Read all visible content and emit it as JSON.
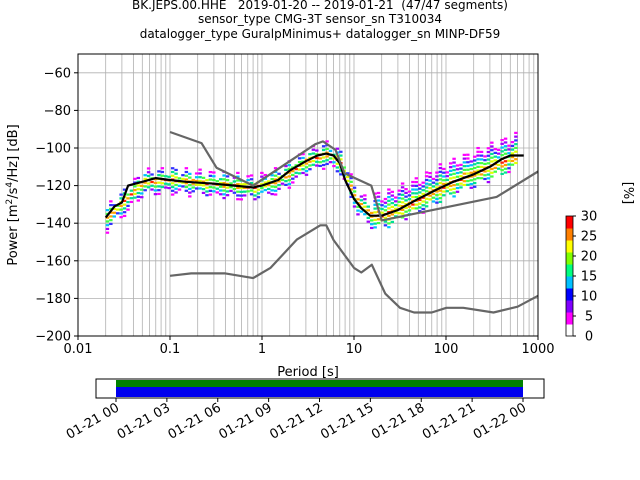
{
  "titles": {
    "line1": "BK.JEPS.00.HHE   2019-01-20 -- 2019-01-21  (47/47 segments)",
    "line2": "sensor_type CMG-3T sensor_sn T310034",
    "line3": "datalogger_type GuralpMinimus+ datalogger_sn MINP-DF59"
  },
  "chart_data": [
    {
      "type": "heatmap",
      "title": "",
      "xlabel": "Period [s]",
      "ylabel_parts": {
        "pre": "Power [m",
        "sup1": "2",
        "mid": "/s",
        "sup2": "4",
        "post": "/Hz] [dB]"
      },
      "xscale": "log",
      "xlim": [
        0.01,
        1000
      ],
      "ylim": [
        -200,
        -50
      ],
      "xtick_values": [
        0.01,
        0.1,
        1,
        10,
        100,
        1000
      ],
      "xtick_labels": [
        "0.01",
        "0.1",
        "1",
        "10",
        "100",
        "1000"
      ],
      "ytick_values": [
        -200,
        -180,
        -160,
        -140,
        -120,
        -100,
        -80,
        -60
      ],
      "ytick_labels": [
        "−200",
        "−180",
        "−160",
        "−140",
        "−120",
        "−100",
        "−80",
        "−60"
      ],
      "grid": true,
      "colorbar": {
        "label": "[%]",
        "min": 0,
        "max": 30,
        "ticks": [
          "0",
          "5",
          "10",
          "15",
          "20",
          "25",
          "30"
        ]
      },
      "series": [
        {
          "name": "",
          "role": "mode",
          "color": "#000000",
          "x": [
            0.02,
            0.025,
            0.03,
            0.035,
            0.05,
            0.07,
            0.1,
            0.15,
            0.3,
            0.5,
            0.8,
            1.0,
            1.5,
            2.0,
            3.0,
            4.0,
            5.0,
            6.0,
            7.0,
            8.0,
            10.0,
            12.0,
            15.0,
            20.0,
            30.0,
            50.0,
            80.0,
            120.0,
            200.0,
            300.0,
            400.0,
            500.0,
            700.0
          ],
          "y": [
            -137,
            -131,
            -129,
            -120,
            -118,
            -116,
            -117,
            -118,
            -119,
            -120,
            -121,
            -120,
            -117,
            -112,
            -107,
            -104,
            -103,
            -104,
            -108,
            -117,
            -127,
            -132,
            -136,
            -136,
            -133,
            -127,
            -122,
            -118,
            -114,
            -110,
            -106,
            -104,
            -104
          ]
        },
        {
          "name": "",
          "role": "NHNM",
          "color": "#666666",
          "x": [
            0.1,
            0.22,
            0.32,
            0.8,
            3.8,
            4.6,
            6.3,
            7.9,
            15.4,
            20.0,
            354.8,
            1000.0
          ],
          "y": [
            -91.5,
            -97.4,
            -110.5,
            -120.0,
            -98.0,
            -96.5,
            -101.0,
            -113.5,
            -120.0,
            -138.5,
            -126.0,
            -112.5
          ]
        },
        {
          "name": "",
          "role": "NLNM",
          "color": "#666666",
          "x": [
            0.1,
            0.17,
            0.4,
            0.8,
            1.24,
            2.4,
            4.3,
            5.0,
            6.0,
            10.0,
            12.0,
            15.6,
            21.9,
            31.6,
            45.0,
            70.0,
            101.0,
            154.0,
            328.0,
            600.0,
            1000.0
          ],
          "y": [
            -168.0,
            -166.7,
            -166.7,
            -169.2,
            -163.7,
            -148.6,
            -141.1,
            -141.1,
            -149.0,
            -163.8,
            -166.2,
            -162.1,
            -177.5,
            -185.0,
            -187.5,
            -187.5,
            -185.0,
            -185.0,
            -187.5,
            -184.4,
            -178.6
          ]
        },
        {
          "name": "",
          "role": "density",
          "note": "colored probability density cells around the mode",
          "x": [
            0.02,
            0.03,
            0.05,
            0.1,
            0.3,
            0.8,
            1.5,
            3.0,
            5.0,
            7.0,
            10.0,
            15.0,
            20.0,
            40.0,
            80.0,
            150.0,
            300.0,
            600.0
          ],
          "y": [
            -137,
            -129,
            -118,
            -117,
            -119,
            -121,
            -117,
            -107,
            -103,
            -108,
            -127,
            -136,
            -136,
            -130,
            -122,
            -116,
            -110,
            -104
          ]
        }
      ]
    },
    {
      "type": "timeline",
      "xlabel": "",
      "xtick_labels": [
        "01-21 00",
        "01-21 03",
        "01-21 06",
        "01-21 09",
        "01-21 12",
        "01-21 15",
        "01-21 18",
        "01-21 21",
        "01-22 00"
      ],
      "start": "01-20 23:00",
      "end": "01-22 01:00",
      "segments": [
        {
          "name": "data coverage",
          "color": "#008000",
          "start": "01-21 00",
          "end": "01-22 00"
        },
        {
          "name": "segments",
          "color": "#0000ee",
          "start": "01-21 00",
          "end": "01-22 00"
        }
      ]
    }
  ]
}
